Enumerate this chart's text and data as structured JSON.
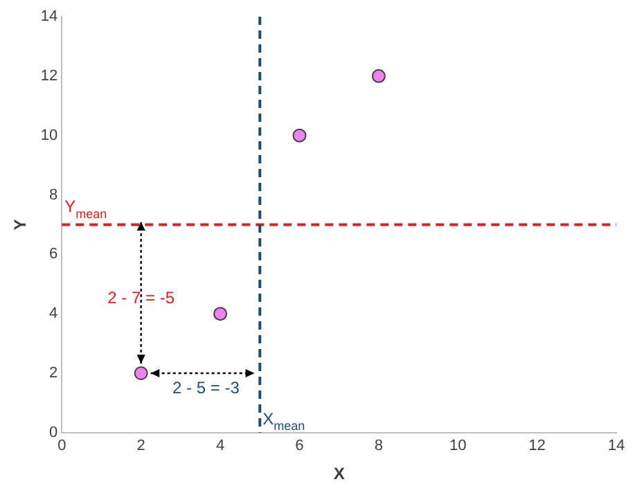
{
  "chart_data": {
    "type": "scatter",
    "xlabel": "X",
    "ylabel": "Y",
    "series": [
      {
        "color": "#ee82ee",
        "x": [
          2,
          4,
          6,
          8
        ],
        "values": [
          2,
          4,
          10,
          12
        ]
      }
    ],
    "xlim": [
      0,
      14
    ],
    "xticks": [
      0,
      2,
      4,
      6,
      8,
      10,
      12,
      14
    ],
    "ylim": [
      0,
      14
    ],
    "yticks": [
      0,
      2,
      4,
      6,
      8,
      10,
      12,
      14
    ],
    "grid": false,
    "legend": false,
    "marker": "circle",
    "ref_lines": [
      {
        "axis": "y",
        "value": 7,
        "label": "Y$_{mean}$",
        "color": "#e02020",
        "line_style": "dashed"
      },
      {
        "axis": "x",
        "value": 5,
        "label": "X$_{mean}$",
        "color": "#1f4e6e",
        "line_style": "dashed"
      }
    ],
    "annotations": [
      "2 - 7 = -5",
      "2 - 5 = -3"
    ]
  }
}
